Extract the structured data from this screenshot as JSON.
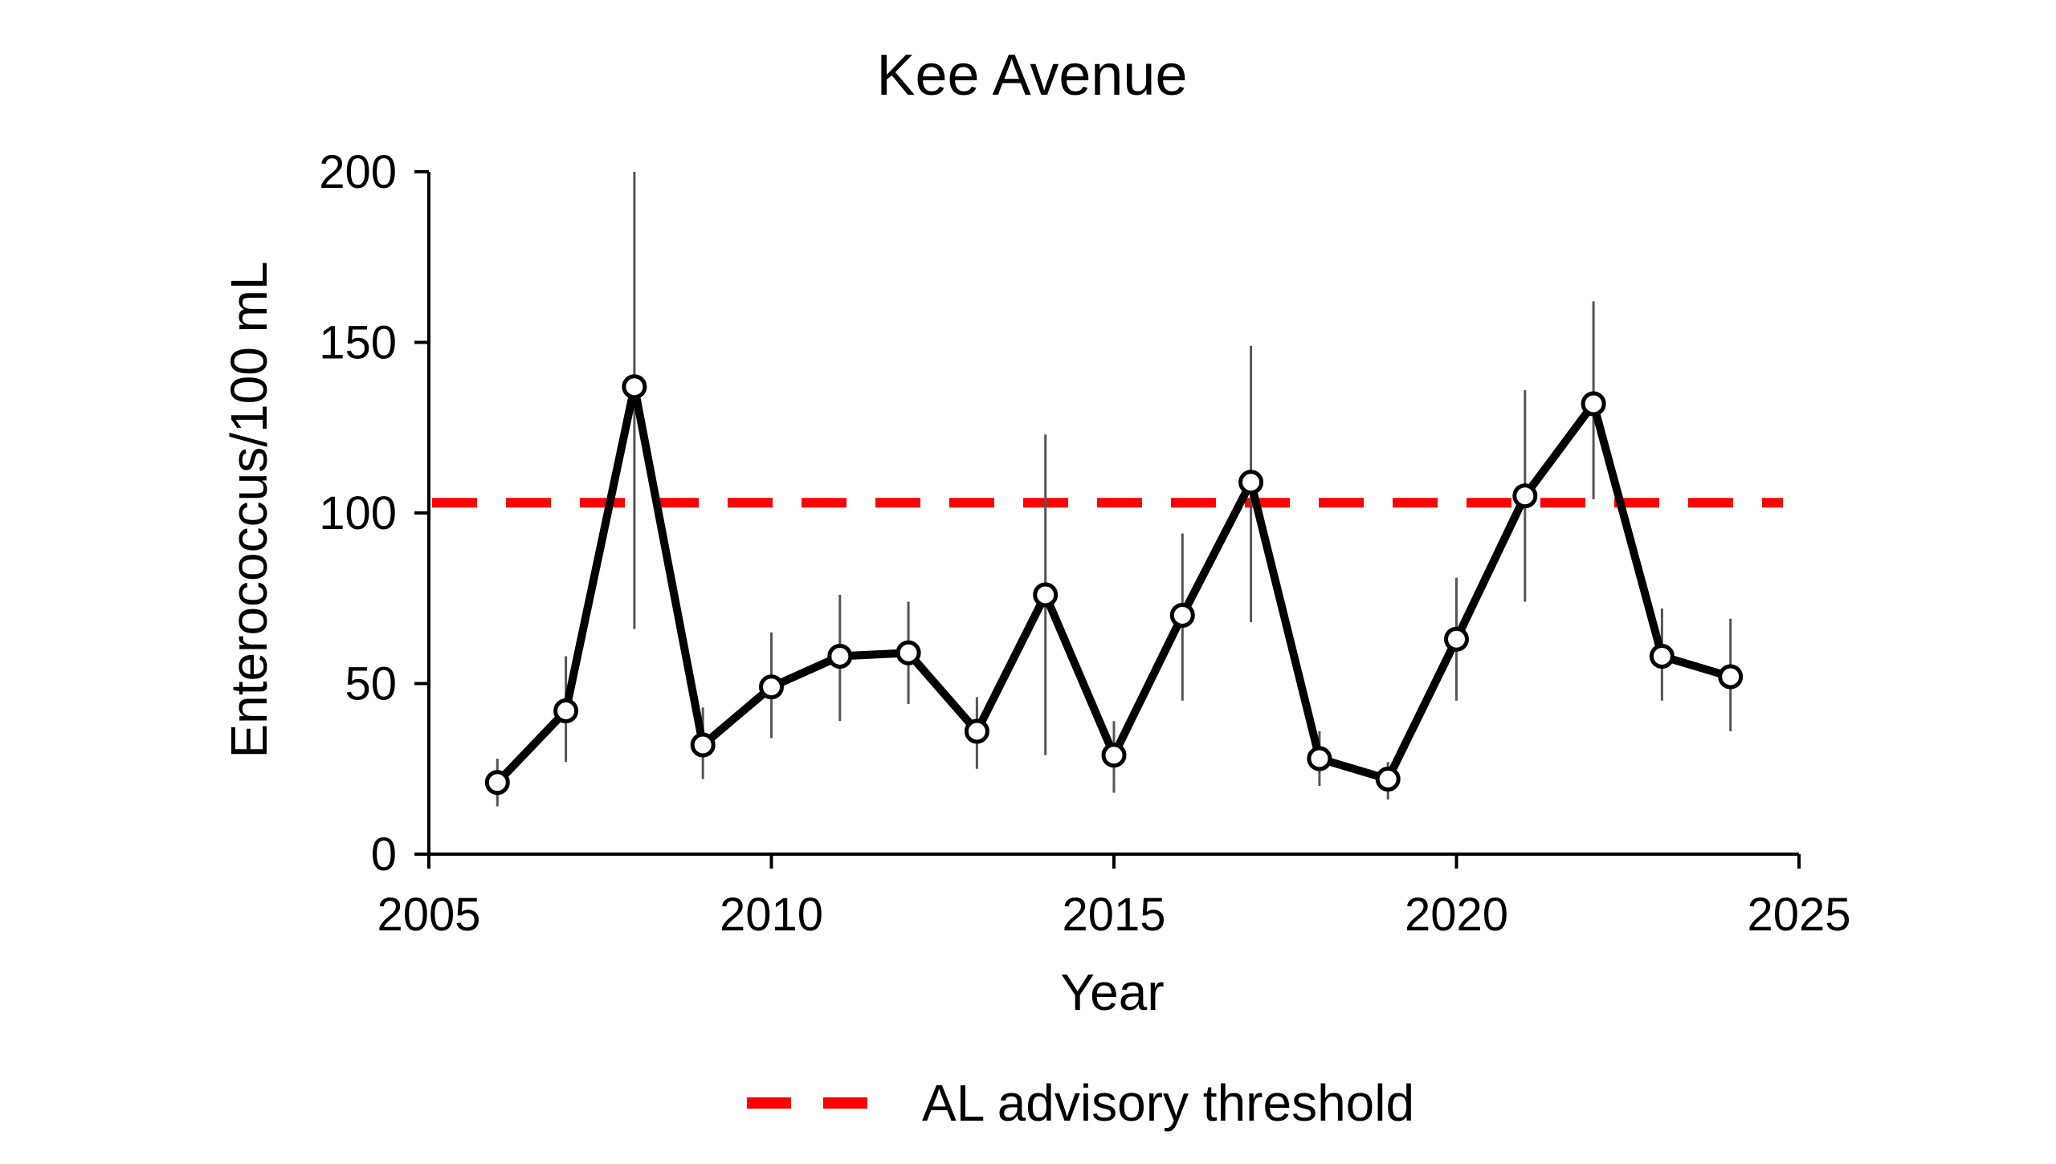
{
  "chart_data": {
    "type": "line",
    "title": "Kee Avenue",
    "xlabel": "Year",
    "ylabel": "Enterococcus/100 mL",
    "xlim": [
      2005,
      2025
    ],
    "ylim": [
      0,
      200
    ],
    "x_ticks": [
      "2005",
      "2010",
      "2015",
      "2020",
      "2025"
    ],
    "y_ticks": [
      "0",
      "50",
      "100",
      "150",
      "200"
    ],
    "grid": false,
    "legend_position": "bottom",
    "series": [
      {
        "x": [
          2006,
          2007,
          2008,
          2009,
          2010,
          2011,
          2012,
          2013,
          2014,
          2015,
          2016,
          2017,
          2018,
          2019,
          2020,
          2021,
          2022,
          2023,
          2024
        ],
        "y": [
          21,
          42,
          137,
          32,
          49,
          58,
          59,
          36,
          76,
          29,
          70,
          109,
          28,
          22,
          63,
          105,
          132,
          58,
          52
        ],
        "error_low": [
          14,
          27,
          66,
          22,
          34,
          39,
          44,
          25,
          29,
          18,
          45,
          68,
          20,
          16,
          45,
          74,
          104,
          45,
          36
        ],
        "error_high": [
          28,
          58,
          200,
          43,
          65,
          76,
          74,
          46,
          123,
          39,
          94,
          149,
          36,
          27,
          81,
          136,
          162,
          72,
          69
        ],
        "color": "#000000"
      }
    ],
    "threshold": {
      "name": "AL advisory threshold",
      "value": 103,
      "color": "#ff0000"
    }
  }
}
